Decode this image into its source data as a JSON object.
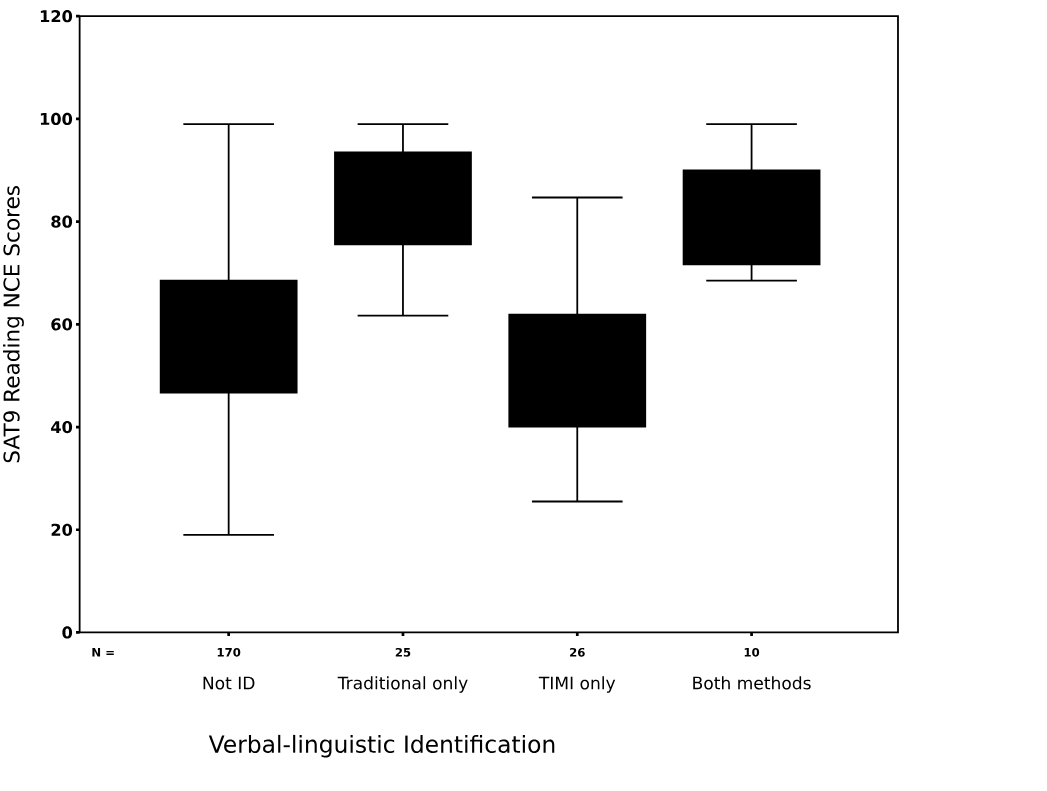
{
  "chart_data": {
    "type": "box",
    "xlabel": "Verbal-linguistic Identification",
    "ylabel": "SAT9 Reading NCE Scores",
    "categories": [
      "Not ID",
      "Traditional only",
      "TIMI only",
      "Both methods"
    ],
    "boxes": [
      {
        "low": 19,
        "q1": 46.7,
        "q3": 68.5,
        "high": 99
      },
      {
        "low": 61.7,
        "q1": 75.6,
        "q3": 93.5,
        "high": 99
      },
      {
        "low": 25.5,
        "q1": 40.1,
        "q3": 61.9,
        "high": 84.7
      },
      {
        "low": 68.5,
        "q1": 71.7,
        "q3": 90,
        "high": 99
      }
    ],
    "color": "#000000",
    "ylim": [
      0,
      120
    ],
    "yticks": [
      0,
      20,
      40,
      60,
      80,
      100,
      120
    ],
    "annotations": [
      "N =",
      "170",
      "25",
      "26",
      "10"
    ]
  }
}
